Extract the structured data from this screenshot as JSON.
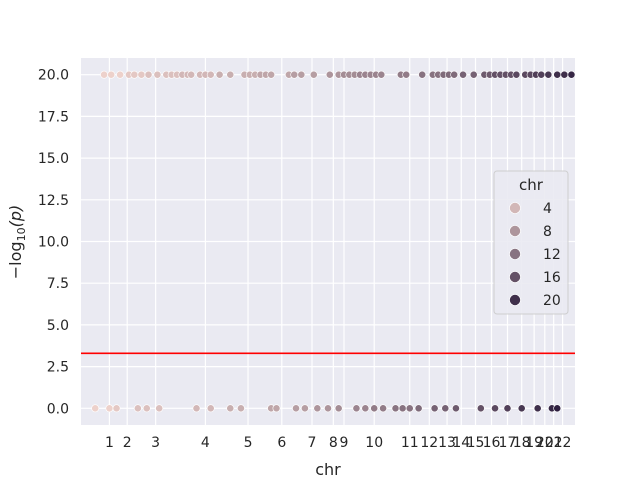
{
  "chart_data": {
    "type": "scatter",
    "xlabel": "chr",
    "ylabel_base": "−log",
    "ylabel_sub": "10",
    "ylabel_var": "(p)",
    "ylim": [
      -1,
      21
    ],
    "yticks": [
      {
        "value": 0.0,
        "label": "0.0"
      },
      {
        "value": 2.5,
        "label": "2.5"
      },
      {
        "value": 5.0,
        "label": "5.0"
      },
      {
        "value": 7.5,
        "label": "7.5"
      },
      {
        "value": 10.0,
        "label": "10.0"
      },
      {
        "value": 12.5,
        "label": "12.5"
      },
      {
        "value": 15.0,
        "label": "15.0"
      },
      {
        "value": 17.5,
        "label": "17.5"
      },
      {
        "value": 20.0,
        "label": "20.0"
      }
    ],
    "xlim": [
      0,
      278
    ],
    "xticks": [
      {
        "value": 16,
        "label": "1"
      },
      {
        "value": 26,
        "label": "2"
      },
      {
        "value": 42,
        "label": "3"
      },
      {
        "value": 70,
        "label": "4"
      },
      {
        "value": 94,
        "label": "5"
      },
      {
        "value": 113,
        "label": "6"
      },
      {
        "value": 130,
        "label": "7"
      },
      {
        "value": 142,
        "label": "8"
      },
      {
        "value": 148,
        "label": "9"
      },
      {
        "value": 165,
        "label": "10"
      },
      {
        "value": 185,
        "label": "11"
      },
      {
        "value": 196,
        "label": "12"
      },
      {
        "value": 206,
        "label": "13"
      },
      {
        "value": 214,
        "label": "14"
      },
      {
        "value": 222,
        "label": "15"
      },
      {
        "value": 231,
        "label": "16"
      },
      {
        "value": 240,
        "label": "17"
      },
      {
        "value": 248,
        "label": "18"
      },
      {
        "value": 255,
        "label": "19"
      },
      {
        "value": 261,
        "label": "20"
      },
      {
        "value": 266,
        "label": "21"
      },
      {
        "value": 271,
        "label": "22"
      }
    ],
    "threshold": 3.3,
    "threshold_color": "#ff0000",
    "hue_min": 1,
    "hue_max": 22,
    "color_light": "#edd1cb",
    "color_dark": "#2d1e3e",
    "legend": {
      "title": "chr",
      "entries": [
        {
          "label": "4",
          "hue": 4
        },
        {
          "label": "8",
          "hue": 8
        },
        {
          "label": "12",
          "hue": 12
        },
        {
          "label": "16",
          "hue": 16
        },
        {
          "label": "20",
          "hue": 20
        }
      ]
    },
    "points": [
      {
        "x": 13,
        "y": 20,
        "hue": 1
      },
      {
        "x": 17,
        "y": 20,
        "hue": 1
      },
      {
        "x": 22,
        "y": 20,
        "hue": 1
      },
      {
        "x": 27,
        "y": 20,
        "hue": 2
      },
      {
        "x": 30,
        "y": 20,
        "hue": 2
      },
      {
        "x": 34,
        "y": 20,
        "hue": 2
      },
      {
        "x": 38,
        "y": 20,
        "hue": 3
      },
      {
        "x": 43,
        "y": 20,
        "hue": 3
      },
      {
        "x": 48,
        "y": 20,
        "hue": 3
      },
      {
        "x": 51,
        "y": 20,
        "hue": 3
      },
      {
        "x": 54,
        "y": 20,
        "hue": 3
      },
      {
        "x": 57,
        "y": 20,
        "hue": 4
      },
      {
        "x": 60,
        "y": 20,
        "hue": 4
      },
      {
        "x": 62,
        "y": 20,
        "hue": 4
      },
      {
        "x": 67,
        "y": 20,
        "hue": 4
      },
      {
        "x": 70,
        "y": 20,
        "hue": 4
      },
      {
        "x": 73,
        "y": 20,
        "hue": 4
      },
      {
        "x": 78,
        "y": 20,
        "hue": 5
      },
      {
        "x": 84,
        "y": 20,
        "hue": 5
      },
      {
        "x": 92,
        "y": 20,
        "hue": 5
      },
      {
        "x": 95,
        "y": 20,
        "hue": 5
      },
      {
        "x": 98,
        "y": 20,
        "hue": 5
      },
      {
        "x": 101,
        "y": 20,
        "hue": 6
      },
      {
        "x": 104,
        "y": 20,
        "hue": 6
      },
      {
        "x": 107,
        "y": 20,
        "hue": 6
      },
      {
        "x": 117,
        "y": 20,
        "hue": 6
      },
      {
        "x": 120,
        "y": 20,
        "hue": 7
      },
      {
        "x": 124,
        "y": 20,
        "hue": 7
      },
      {
        "x": 131,
        "y": 20,
        "hue": 7
      },
      {
        "x": 140,
        "y": 20,
        "hue": 8
      },
      {
        "x": 145,
        "y": 20,
        "hue": 8
      },
      {
        "x": 148,
        "y": 20,
        "hue": 9
      },
      {
        "x": 151,
        "y": 20,
        "hue": 9
      },
      {
        "x": 154,
        "y": 20,
        "hue": 9
      },
      {
        "x": 157,
        "y": 20,
        "hue": 10
      },
      {
        "x": 160,
        "y": 20,
        "hue": 10
      },
      {
        "x": 163,
        "y": 20,
        "hue": 10
      },
      {
        "x": 166,
        "y": 20,
        "hue": 10
      },
      {
        "x": 169,
        "y": 20,
        "hue": 10
      },
      {
        "x": 180,
        "y": 20,
        "hue": 11
      },
      {
        "x": 183,
        "y": 20,
        "hue": 11
      },
      {
        "x": 192,
        "y": 20,
        "hue": 12
      },
      {
        "x": 198,
        "y": 20,
        "hue": 12
      },
      {
        "x": 201,
        "y": 20,
        "hue": 12
      },
      {
        "x": 204,
        "y": 20,
        "hue": 13
      },
      {
        "x": 207,
        "y": 20,
        "hue": 13
      },
      {
        "x": 210,
        "y": 20,
        "hue": 13
      },
      {
        "x": 215,
        "y": 20,
        "hue": 14
      },
      {
        "x": 221,
        "y": 20,
        "hue": 14
      },
      {
        "x": 227,
        "y": 20,
        "hue": 15
      },
      {
        "x": 230,
        "y": 20,
        "hue": 15
      },
      {
        "x": 233,
        "y": 20,
        "hue": 16
      },
      {
        "x": 236,
        "y": 20,
        "hue": 16
      },
      {
        "x": 239,
        "y": 20,
        "hue": 16
      },
      {
        "x": 242,
        "y": 20,
        "hue": 16
      },
      {
        "x": 245,
        "y": 20,
        "hue": 17
      },
      {
        "x": 250,
        "y": 20,
        "hue": 17
      },
      {
        "x": 253,
        "y": 20,
        "hue": 17
      },
      {
        "x": 256,
        "y": 20,
        "hue": 18
      },
      {
        "x": 259,
        "y": 20,
        "hue": 18
      },
      {
        "x": 263,
        "y": 20,
        "hue": 19
      },
      {
        "x": 268,
        "y": 20,
        "hue": 20
      },
      {
        "x": 272,
        "y": 20,
        "hue": 20
      },
      {
        "x": 276,
        "y": 20,
        "hue": 21
      },
      {
        "x": 8,
        "y": 0,
        "hue": 1
      },
      {
        "x": 16,
        "y": 0,
        "hue": 1
      },
      {
        "x": 20,
        "y": 0,
        "hue": 2
      },
      {
        "x": 32,
        "y": 0,
        "hue": 3
      },
      {
        "x": 37,
        "y": 0,
        "hue": 3
      },
      {
        "x": 44,
        "y": 0,
        "hue": 3
      },
      {
        "x": 65,
        "y": 0,
        "hue": 4
      },
      {
        "x": 73,
        "y": 0,
        "hue": 4
      },
      {
        "x": 84,
        "y": 0,
        "hue": 5
      },
      {
        "x": 90,
        "y": 0,
        "hue": 5
      },
      {
        "x": 107,
        "y": 0,
        "hue": 6
      },
      {
        "x": 110,
        "y": 0,
        "hue": 6
      },
      {
        "x": 121,
        "y": 0,
        "hue": 7
      },
      {
        "x": 126,
        "y": 0,
        "hue": 7
      },
      {
        "x": 133,
        "y": 0,
        "hue": 8
      },
      {
        "x": 139,
        "y": 0,
        "hue": 8
      },
      {
        "x": 145,
        "y": 0,
        "hue": 9
      },
      {
        "x": 155,
        "y": 0,
        "hue": 10
      },
      {
        "x": 160,
        "y": 0,
        "hue": 10
      },
      {
        "x": 165,
        "y": 0,
        "hue": 11
      },
      {
        "x": 170,
        "y": 0,
        "hue": 11
      },
      {
        "x": 177,
        "y": 0,
        "hue": 12
      },
      {
        "x": 181,
        "y": 0,
        "hue": 12
      },
      {
        "x": 185,
        "y": 0,
        "hue": 12
      },
      {
        "x": 190,
        "y": 0,
        "hue": 13
      },
      {
        "x": 199,
        "y": 0,
        "hue": 14
      },
      {
        "x": 205,
        "y": 0,
        "hue": 14
      },
      {
        "x": 211,
        "y": 0,
        "hue": 15
      },
      {
        "x": 225,
        "y": 0,
        "hue": 16
      },
      {
        "x": 233,
        "y": 0,
        "hue": 17
      },
      {
        "x": 240,
        "y": 0,
        "hue": 18
      },
      {
        "x": 248,
        "y": 0,
        "hue": 19
      },
      {
        "x": 257,
        "y": 0,
        "hue": 20
      },
      {
        "x": 265,
        "y": 0,
        "hue": 21
      },
      {
        "x": 268,
        "y": 0,
        "hue": 22
      }
    ]
  }
}
